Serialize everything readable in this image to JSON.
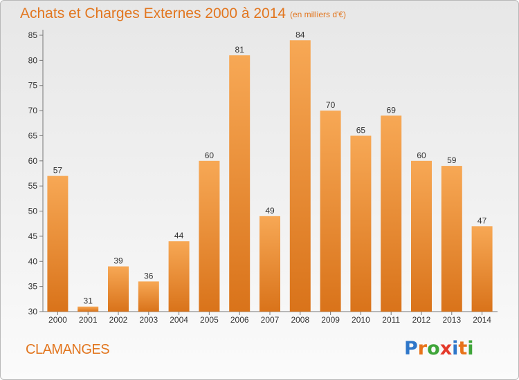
{
  "header": {
    "title": "Achats et Charges Externes 2000 à 2014",
    "unit": "(en milliers d'€)"
  },
  "footer": {
    "commune": "CLAMANGES",
    "logo_text": "Proxiti",
    "logo_colors": [
      "#2f77c9",
      "#e8731a",
      "#3fa53a",
      "#e43a2b",
      "#2f77c9",
      "#e8731a",
      "#3fa53a"
    ]
  },
  "colors": {
    "bar_light": "#f7a855",
    "bar_dark": "#d9731a",
    "accent": "#e2761f"
  },
  "chart_data": {
    "type": "bar",
    "title": "Achats et Charges Externes 2000 à 2014",
    "subtitle": "(en milliers d'€)",
    "categories": [
      "2000",
      "2001",
      "2002",
      "2003",
      "2004",
      "2005",
      "2006",
      "2007",
      "2008",
      "2009",
      "2010",
      "2011",
      "2012",
      "2013",
      "2014"
    ],
    "values": [
      57,
      31,
      39,
      36,
      44,
      60,
      81,
      49,
      84,
      70,
      65,
      69,
      60,
      59,
      47
    ],
    "ylim": [
      30,
      85
    ],
    "yticks": [
      30,
      35,
      40,
      45,
      50,
      55,
      60,
      65,
      70,
      75,
      80,
      85
    ],
    "grid": false,
    "data_labels": true
  }
}
